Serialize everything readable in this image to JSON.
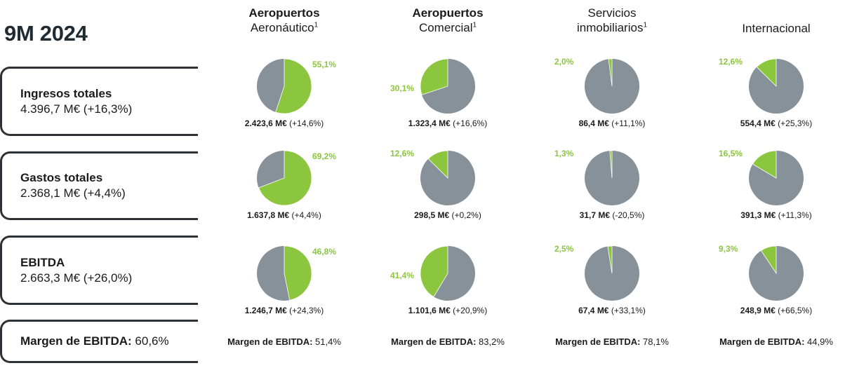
{
  "title": "9M 2024",
  "colors": {
    "green": "#8cc63f",
    "grey": "#87919a",
    "label_green": "#8cc63f"
  },
  "metrics": [
    {
      "name": "Ingresos totales",
      "value": "4.396,7 M€ (+16,3%)"
    },
    {
      "name": "Gastos totales",
      "value": "2.368,1 M€ (+4,4%)"
    },
    {
      "name": "EBITDA",
      "value": "2.663,3 M€ (+26,0%)"
    }
  ],
  "margin_total": {
    "label": "Margen de EBITDA:",
    "value": "60,6%"
  },
  "columns": [
    {
      "line1": "Aeropuertos",
      "line2": "Aeronáutico",
      "sup": "1",
      "bold_line1": true,
      "margin_label": "Margen de EBITDA:",
      "margin_value": "51,4%"
    },
    {
      "line1": "Aeropuertos",
      "line2": "Comercial",
      "sup": "1",
      "bold_line1": true,
      "margin_label": "Margen de EBITDA:",
      "margin_value": "83,2%"
    },
    {
      "line1": "Servicios",
      "line2": "inmobiliarios",
      "sup": "1",
      "bold_line1": false,
      "margin_label": "Margen de EBITDA:",
      "margin_value": "78,1%"
    },
    {
      "line1": "",
      "line2": "Internacional",
      "sup": "",
      "bold_line1": false,
      "margin_label": "Margen de EBITDA:",
      "margin_value": "44,9%"
    }
  ],
  "chart_data": {
    "type": "pie",
    "title": "9M 2024",
    "rows": [
      "Ingresos totales",
      "Gastos totales",
      "EBITDA"
    ],
    "segments": [
      "Aeropuertos Aeronáutico",
      "Aeropuertos Comercial",
      "Servicios inmobiliarios",
      "Internacional"
    ],
    "pies": [
      [
        {
          "pct": 55.1,
          "label": "55,1%",
          "amount": "2.423,6 M€",
          "change": "(+14,6%)"
        },
        {
          "pct": 30.1,
          "label": "30,1%",
          "amount": "1.323,4 M€",
          "change": "(+16,6%)"
        },
        {
          "pct": 2.0,
          "label": "2,0%",
          "amount": "86,4 M€",
          "change": "(+11,1%)"
        },
        {
          "pct": 12.6,
          "label": "12,6%",
          "amount": "554,4 M€",
          "change": "(+25,3%)"
        }
      ],
      [
        {
          "pct": 69.2,
          "label": "69,2%",
          "amount": "1.637,8 M€",
          "change": "(+4,4%)"
        },
        {
          "pct": 12.6,
          "label": "12,6%",
          "amount": "298,5 M€",
          "change": "(+0,2%)"
        },
        {
          "pct": 1.3,
          "label": "1,3%",
          "amount": "31,7 M€",
          "change": "(-20,5%)"
        },
        {
          "pct": 16.5,
          "label": "16,5%",
          "amount": "391,3 M€",
          "change": "(+11,3%)"
        }
      ],
      [
        {
          "pct": 46.8,
          "label": "46,8%",
          "amount": "1.246,7 M€",
          "change": "(+24,3%)"
        },
        {
          "pct": 41.4,
          "label": "41,4%",
          "amount": "1.101,6 M€",
          "change": "(+20,9%)"
        },
        {
          "pct": 2.5,
          "label": "2,5%",
          "amount": "67,4 M€",
          "change": "(+33,1%)"
        },
        {
          "pct": 9.3,
          "label": "9,3%",
          "amount": "248,9 M€",
          "change": "(+66,5%)"
        }
      ]
    ]
  }
}
